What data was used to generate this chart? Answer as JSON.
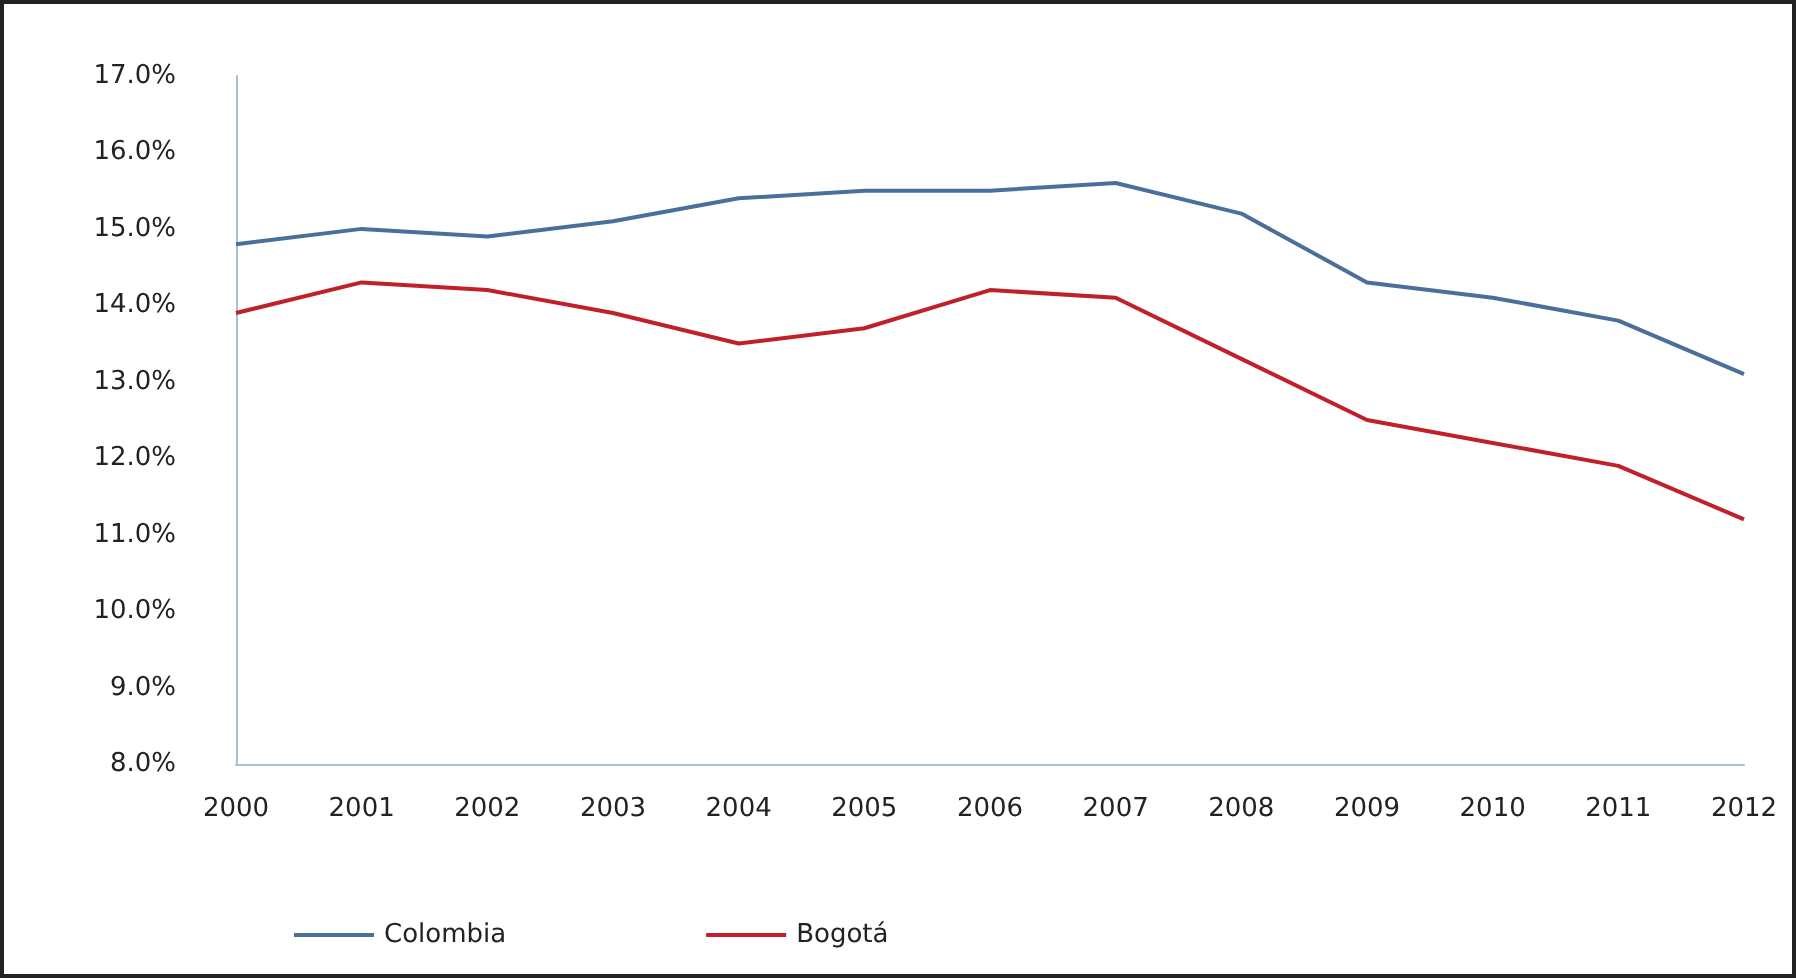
{
  "chart_data": {
    "type": "line",
    "categories": [
      "2000",
      "2001",
      "2002",
      "2003",
      "2004",
      "2005",
      "2006",
      "2007",
      "2008",
      "2009",
      "2010",
      "2011",
      "2012"
    ],
    "series": [
      {
        "name": "Colombia",
        "color": "#4a6f9a",
        "values": [
          14.8,
          15.0,
          14.9,
          15.1,
          15.4,
          15.5,
          15.5,
          15.6,
          15.2,
          14.3,
          14.1,
          13.8,
          13.1
        ]
      },
      {
        "name": "Bogotá",
        "color": "#c0202a",
        "values": [
          13.9,
          14.3,
          14.2,
          13.9,
          13.5,
          13.7,
          14.2,
          14.1,
          13.3,
          12.5,
          12.2,
          11.9,
          11.2
        ]
      }
    ],
    "ylim": [
      8,
      17
    ],
    "yticks": [
      {
        "value": 8,
        "label": "8.0%"
      },
      {
        "value": 9,
        "label": "9.0%"
      },
      {
        "value": 10,
        "label": "10.0%"
      },
      {
        "value": 11,
        "label": "11.0%"
      },
      {
        "value": 12,
        "label": "12.0%"
      },
      {
        "value": 13,
        "label": "13.0%"
      },
      {
        "value": 14,
        "label": "14.0%"
      },
      {
        "value": 15,
        "label": "15.0%"
      },
      {
        "value": 16,
        "label": "16.0%"
      },
      {
        "value": 17,
        "label": "17.0%"
      }
    ],
    "grid": false,
    "legend": "bottom",
    "marker": "none",
    "line_style": "solid"
  }
}
